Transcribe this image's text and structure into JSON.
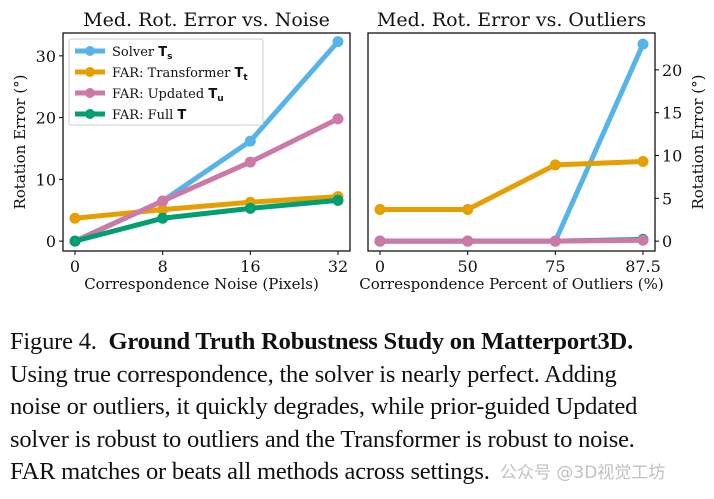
{
  "colors": {
    "solver": "#56b4e9",
    "transformer": "#e69f00",
    "updated": "#cc79a7",
    "full": "#009e73"
  },
  "chart_data": [
    {
      "type": "line",
      "title": "Med. Rot. Error vs. Noise",
      "xlabel": "Correspondence Noise (Pixels)",
      "ylabel": "Rotation Error (°)",
      "categories": [
        "0",
        "8",
        "16",
        "32"
      ],
      "ylim": [
        -1.6,
        33.7
      ],
      "yticks": [
        0,
        10,
        20,
        30
      ],
      "y_axis_side": "left",
      "legend": "top-left",
      "grid": false,
      "series": [
        {
          "key": "solver",
          "name": "Solver ",
          "sub": "T",
          "subscript": "s",
          "values": [
            0,
            6.5,
            16.2,
            32.3
          ]
        },
        {
          "key": "transformer",
          "name": "FAR: Transformer ",
          "sub": "T",
          "subscript": "t",
          "values": [
            3.7,
            5.1,
            6.3,
            7.2
          ]
        },
        {
          "key": "updated",
          "name": "FAR: Updated ",
          "sub": "T",
          "subscript": "u",
          "values": [
            0,
            6.5,
            12.8,
            19.8
          ]
        },
        {
          "key": "full",
          "name": "FAR: Full ",
          "sub": "T",
          "subscript": "",
          "values": [
            0,
            3.7,
            5.3,
            6.6
          ]
        }
      ]
    },
    {
      "type": "line",
      "title": "Med. Rot. Error vs. Outliers",
      "xlabel": "Correspondence Percent of Outliers (%)",
      "ylabel": "Rotation Error (°)",
      "categories": [
        "0",
        "50",
        "75",
        "87.5"
      ],
      "ylim": [
        -1.15,
        24.3
      ],
      "yticks": [
        0,
        5,
        10,
        15,
        20
      ],
      "y_axis_side": "right",
      "grid": false,
      "series": [
        {
          "key": "solver",
          "values": [
            0,
            0,
            0,
            23.0
          ]
        },
        {
          "key": "transformer",
          "values": [
            3.7,
            3.7,
            8.9,
            9.3
          ]
        },
        {
          "key": "full",
          "values": [
            0,
            0,
            0,
            0.2
          ]
        },
        {
          "key": "updated",
          "values": [
            0,
            0,
            0,
            0.1
          ]
        }
      ]
    }
  ],
  "caption": {
    "label": "Figure 4.",
    "title": "Ground Truth Robustness Study on Matterport3D",
    "lines": [
      "Using true correspondence, the solver is nearly perfect.  Adding",
      "noise or outliers, it quickly degrades, while prior-guided Updated",
      "solver is robust to outliers and the Transformer is robust to noise.",
      "FAR matches or beats all methods across settings."
    ]
  },
  "watermark": "公众号 @3D视觉工坊"
}
